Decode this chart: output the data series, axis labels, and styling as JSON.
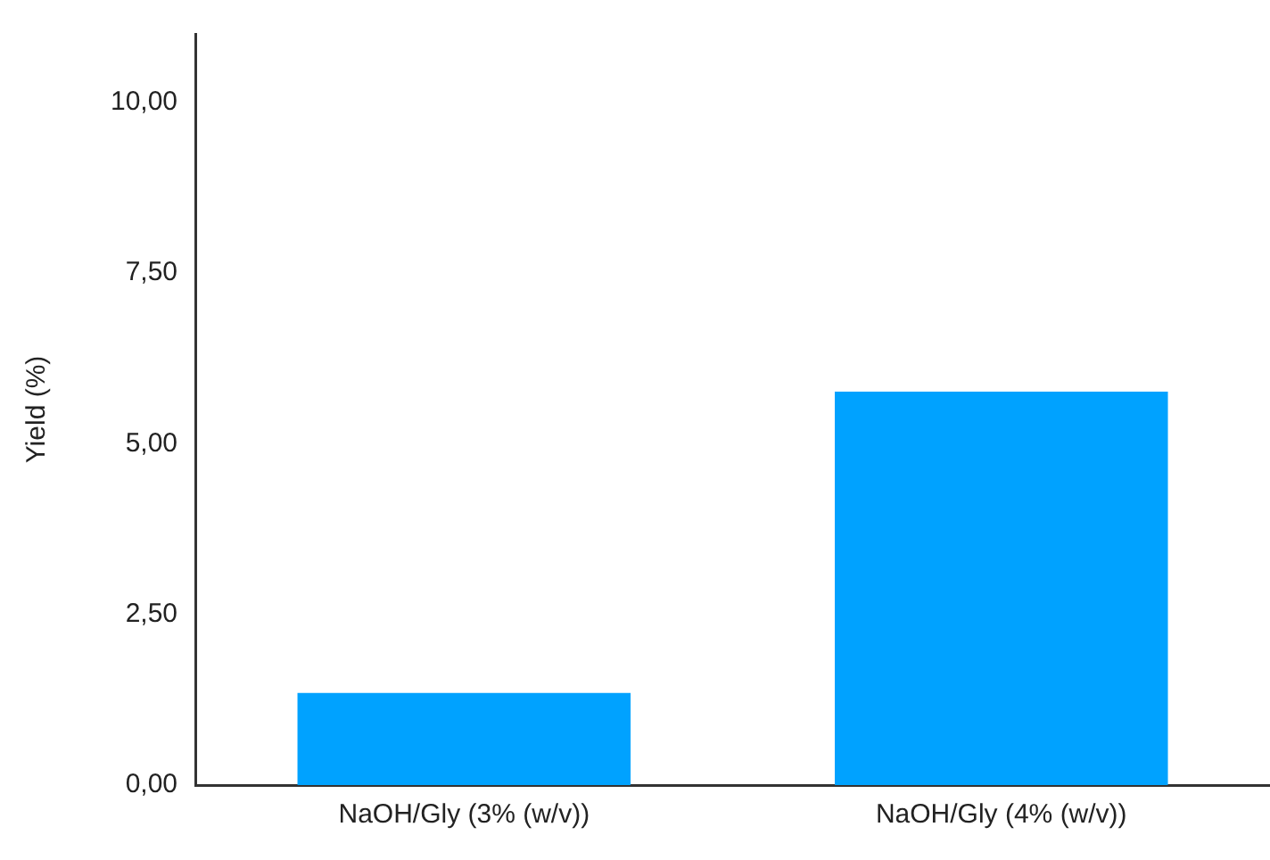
{
  "chart_data": {
    "type": "bar",
    "ylabel": "Yield (%)",
    "categories": [
      "NaOH/Gly (3% (w/v))",
      "NaOH/Gly (4% (w/v))"
    ],
    "values": [
      1.35,
      5.76
    ],
    "color": "#00a2ff",
    "ylim": [
      0,
      11
    ],
    "yticks": [
      {
        "value": 0,
        "label": "0,00"
      },
      {
        "value": 2.5,
        "label": "2,50"
      },
      {
        "value": 5,
        "label": "5,00"
      },
      {
        "value": 7.5,
        "label": "7,50"
      },
      {
        "value": 10,
        "label": "10,00"
      }
    ],
    "grid": false,
    "legend": false
  }
}
